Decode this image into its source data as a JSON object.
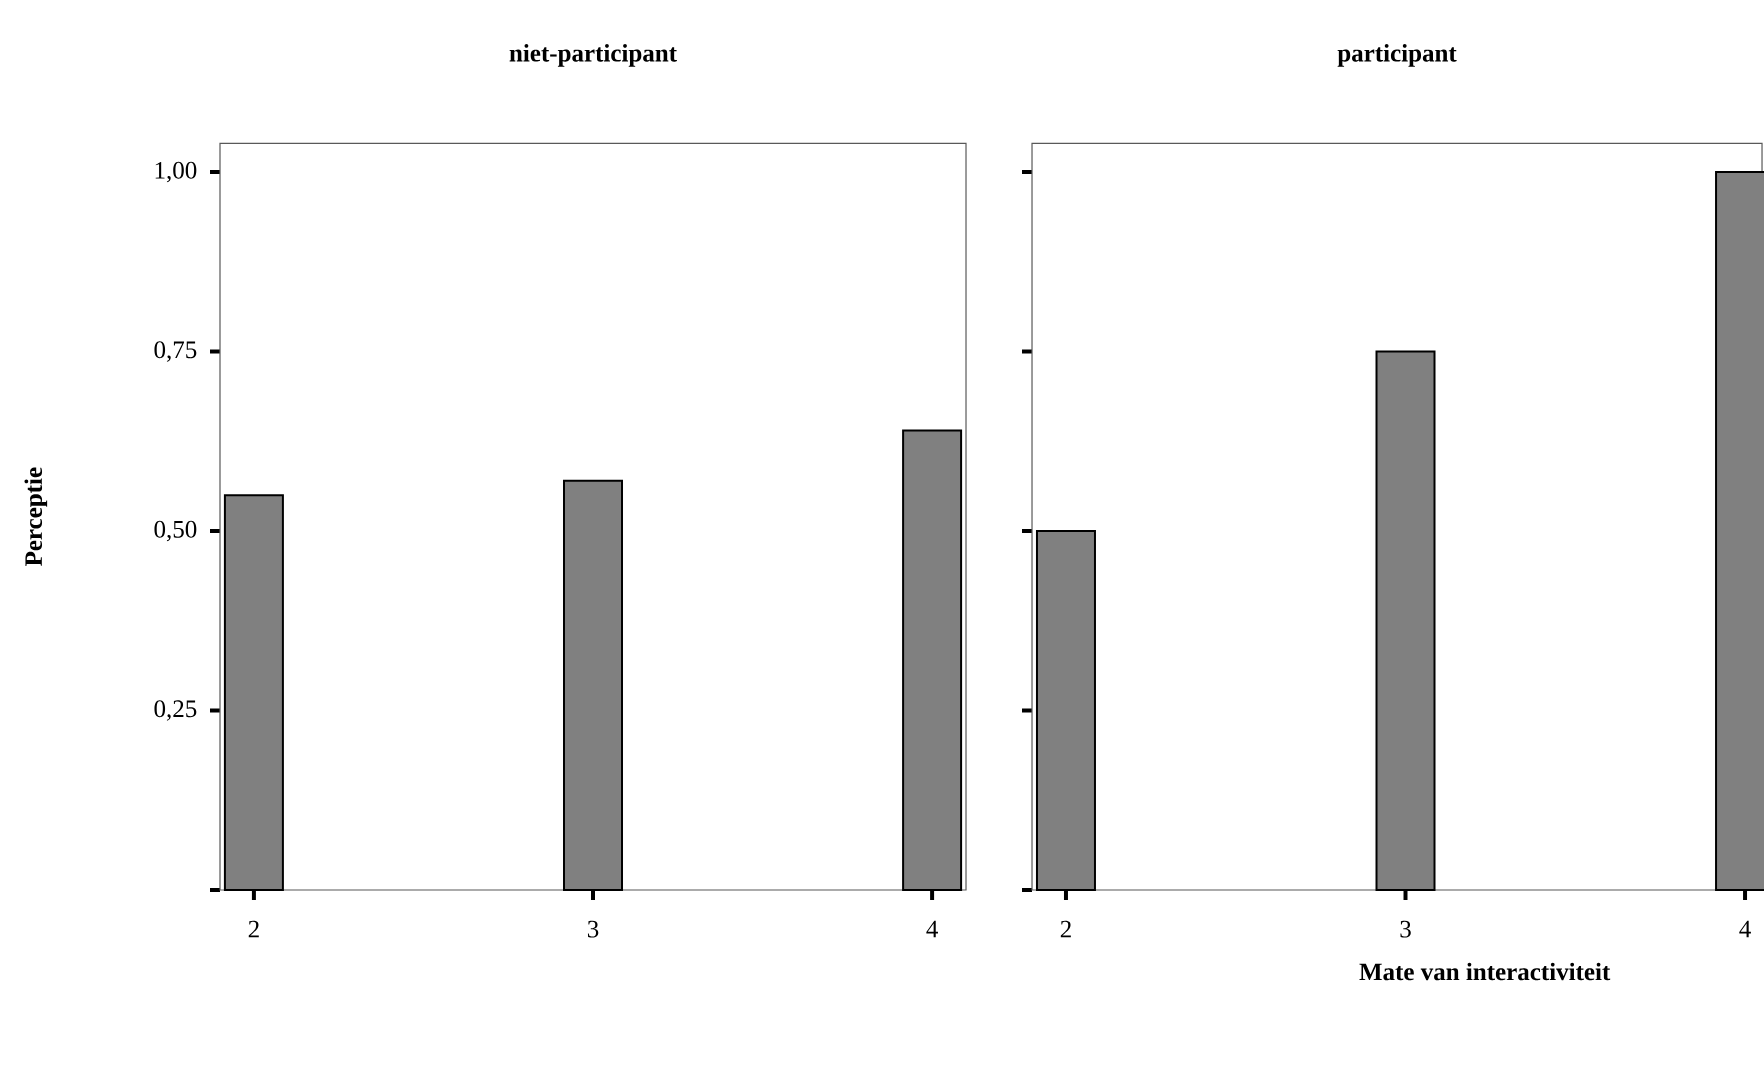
{
  "chart_data": [
    {
      "type": "bar",
      "title": "niet-participant",
      "ylabel": "Perceptie",
      "categories": [
        "2",
        "3",
        "4"
      ],
      "values": [
        0.55,
        0.57,
        0.64
      ],
      "color": "#808080",
      "ylim": [
        0,
        1.04
      ],
      "yticks": [
        {
          "value": 0,
          "label": null
        },
        {
          "value": 0.25,
          "label": "0,25"
        },
        {
          "value": 0.5,
          "label": "0,50"
        },
        {
          "value": 0.75,
          "label": "0,75"
        },
        {
          "value": 1,
          "label": "1,00"
        }
      ],
      "grid": false
    },
    {
      "type": "bar",
      "title": "participant",
      "xlabel": "Mate van interactiviteit",
      "categories": [
        "2",
        "3",
        "4"
      ],
      "values": [
        0.5,
        0.75,
        1.0
      ],
      "color": "#808080",
      "ylim": [
        0,
        1.04
      ],
      "yticks": [
        {
          "value": 0,
          "label": null
        },
        {
          "value": 0.25,
          "label": null
        },
        {
          "value": 0.5,
          "label": null
        },
        {
          "value": 0.75,
          "label": null
        },
        {
          "value": 1,
          "label": null
        }
      ],
      "tick_labels": "x",
      "grid": false
    }
  ]
}
